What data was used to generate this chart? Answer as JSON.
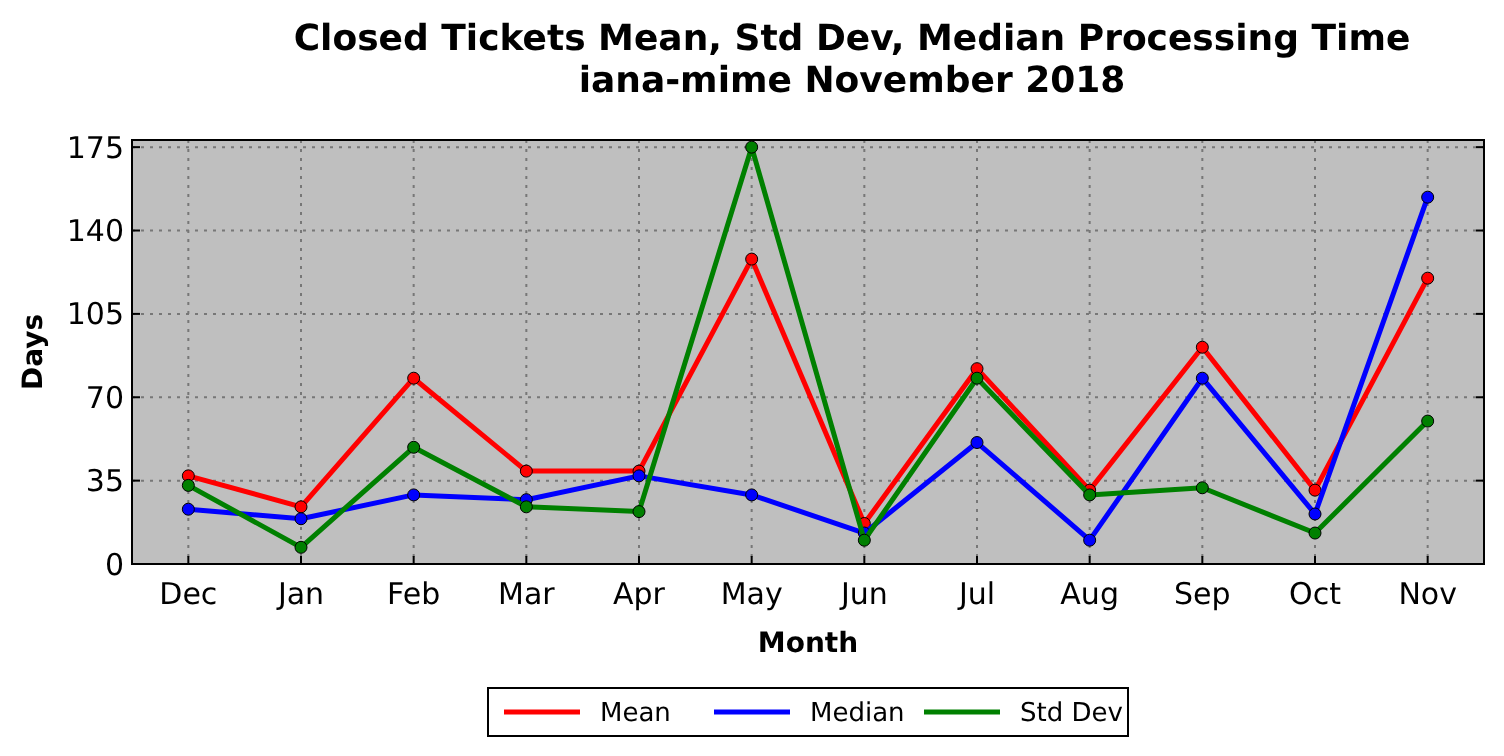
{
  "chart_data": {
    "type": "line",
    "title": "Closed Tickets Mean, Std Dev, Median Processing Time\niana-mime November 2018",
    "xlabel": "Month",
    "ylabel": "Days",
    "categories": [
      "Dec",
      "Jan",
      "Feb",
      "Mar",
      "Apr",
      "May",
      "Jun",
      "Jul",
      "Aug",
      "Sep",
      "Oct",
      "Nov"
    ],
    "series": [
      {
        "name": "Mean",
        "color": "#ff0000",
        "values": [
          37,
          24,
          78,
          39,
          39,
          128,
          17,
          82,
          31,
          91,
          31,
          120
        ]
      },
      {
        "name": "Median",
        "color": "#0000ff",
        "values": [
          23,
          19,
          29,
          27,
          37,
          29,
          13,
          51,
          10,
          78,
          21,
          154
        ]
      },
      {
        "name": "Std Dev",
        "color": "#008000",
        "values": [
          33,
          7,
          49,
          24,
          22,
          175,
          10,
          78,
          29,
          32,
          13,
          60
        ]
      }
    ],
    "ylim": [
      0,
      178
    ],
    "yticks": [
      0,
      35,
      70,
      105,
      140,
      175
    ],
    "grid": true,
    "legend": "bottom",
    "marker": "circle",
    "line_style": "solid"
  }
}
